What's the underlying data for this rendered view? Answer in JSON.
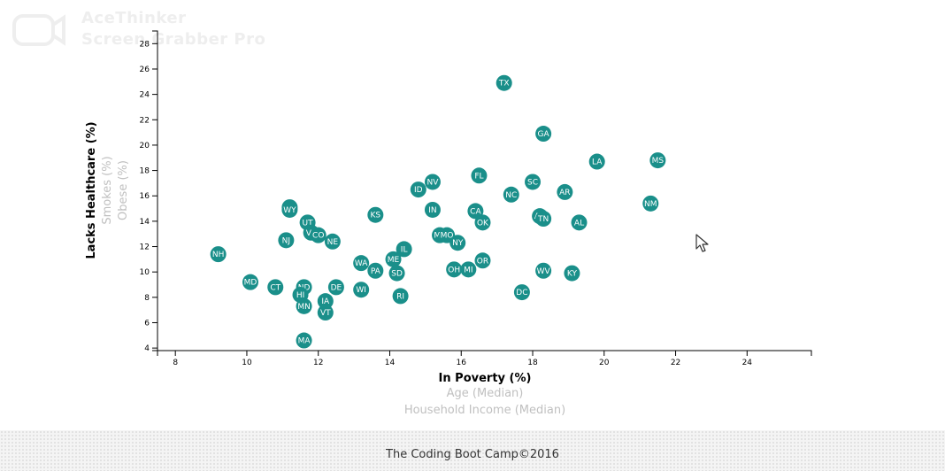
{
  "watermark": {
    "line1": "AceThinker",
    "line2": "Screen Grabber Pro",
    "icon": "camera-icon"
  },
  "chart_data": {
    "type": "scatter",
    "xlabel": "In Poverty (%)",
    "ylabel": "Lacks Healthcare (%)",
    "x_alt_labels": [
      "Age (Median)",
      "Household Income (Median)"
    ],
    "y_alt_labels": [
      "Smokes (%)",
      "Obese (%)"
    ],
    "xlim": [
      7.5,
      25.8
    ],
    "ylim": [
      3.8,
      29
    ],
    "xticks": [
      8,
      10,
      12,
      14,
      16,
      18,
      20,
      22,
      24
    ],
    "yticks": [
      4,
      6,
      8,
      10,
      12,
      14,
      16,
      18,
      20,
      22,
      24,
      26,
      28
    ],
    "grid": false,
    "point_color": "#1a8f8a",
    "points": [
      {
        "label": "TX",
        "x": 17.2,
        "y": 24.9
      },
      {
        "label": "GA",
        "x": 18.3,
        "y": 20.9
      },
      {
        "label": "MS",
        "x": 21.5,
        "y": 18.8
      },
      {
        "label": "LA",
        "x": 19.8,
        "y": 18.7
      },
      {
        "label": "FL",
        "x": 16.5,
        "y": 17.6
      },
      {
        "label": "NV",
        "x": 15.2,
        "y": 17.1
      },
      {
        "label": "SC",
        "x": 18.0,
        "y": 17.1
      },
      {
        "label": "ID",
        "x": 14.8,
        "y": 16.5
      },
      {
        "label": "AR",
        "x": 18.9,
        "y": 16.3
      },
      {
        "label": "NC",
        "x": 17.4,
        "y": 16.1
      },
      {
        "label": "NM",
        "x": 21.3,
        "y": 15.4
      },
      {
        "label": "AK",
        "x": 11.2,
        "y": 15.1
      },
      {
        "label": "WY",
        "x": 11.2,
        "y": 14.9
      },
      {
        "label": "IN",
        "x": 15.2,
        "y": 14.9
      },
      {
        "label": "CA",
        "x": 16.4,
        "y": 14.8
      },
      {
        "label": "KS",
        "x": 13.6,
        "y": 14.5
      },
      {
        "label": "AZ",
        "x": 18.2,
        "y": 14.4
      },
      {
        "label": "TN",
        "x": 18.3,
        "y": 14.2
      },
      {
        "label": "UT",
        "x": 11.7,
        "y": 13.9
      },
      {
        "label": "OK",
        "x": 16.6,
        "y": 13.9
      },
      {
        "label": "AL",
        "x": 19.3,
        "y": 13.9
      },
      {
        "label": "VA",
        "x": 11.8,
        "y": 13.1
      },
      {
        "label": "MT",
        "x": 15.4,
        "y": 12.9
      },
      {
        "label": "MO",
        "x": 15.6,
        "y": 12.9
      },
      {
        "label": "CO",
        "x": 12.0,
        "y": 12.9
      },
      {
        "label": "NJ",
        "x": 11.1,
        "y": 12.5
      },
      {
        "label": "NE",
        "x": 12.4,
        "y": 12.4
      },
      {
        "label": "NY",
        "x": 15.9,
        "y": 12.3
      },
      {
        "label": "IL",
        "x": 14.4,
        "y": 11.8
      },
      {
        "label": "NH",
        "x": 9.2,
        "y": 11.4
      },
      {
        "label": "ME",
        "x": 14.1,
        "y": 11.0
      },
      {
        "label": "OR",
        "x": 16.6,
        "y": 10.9
      },
      {
        "label": "WA",
        "x": 13.2,
        "y": 10.7
      },
      {
        "label": "OH",
        "x": 15.8,
        "y": 10.2
      },
      {
        "label": "MI",
        "x": 16.2,
        "y": 10.2
      },
      {
        "label": "PA",
        "x": 13.6,
        "y": 10.1
      },
      {
        "label": "WV",
        "x": 18.3,
        "y": 10.1
      },
      {
        "label": "SD",
        "x": 14.2,
        "y": 9.9
      },
      {
        "label": "KY",
        "x": 19.1,
        "y": 9.9
      },
      {
        "label": "MD",
        "x": 10.1,
        "y": 9.2
      },
      {
        "label": "CT",
        "x": 10.8,
        "y": 8.8
      },
      {
        "label": "ND",
        "x": 11.6,
        "y": 8.8
      },
      {
        "label": "DE",
        "x": 12.5,
        "y": 8.8
      },
      {
        "label": "WI",
        "x": 13.2,
        "y": 8.6
      },
      {
        "label": "DC",
        "x": 17.7,
        "y": 8.4
      },
      {
        "label": "HI",
        "x": 11.5,
        "y": 8.2
      },
      {
        "label": "RI",
        "x": 14.3,
        "y": 8.1
      },
      {
        "label": "IA",
        "x": 12.2,
        "y": 7.7
      },
      {
        "label": "MN",
        "x": 11.6,
        "y": 7.3
      },
      {
        "label": "VT",
        "x": 12.2,
        "y": 6.8
      },
      {
        "label": "MA",
        "x": 11.6,
        "y": 4.6
      }
    ]
  },
  "footer": {
    "text": "The Coding Boot Camp©2016"
  }
}
